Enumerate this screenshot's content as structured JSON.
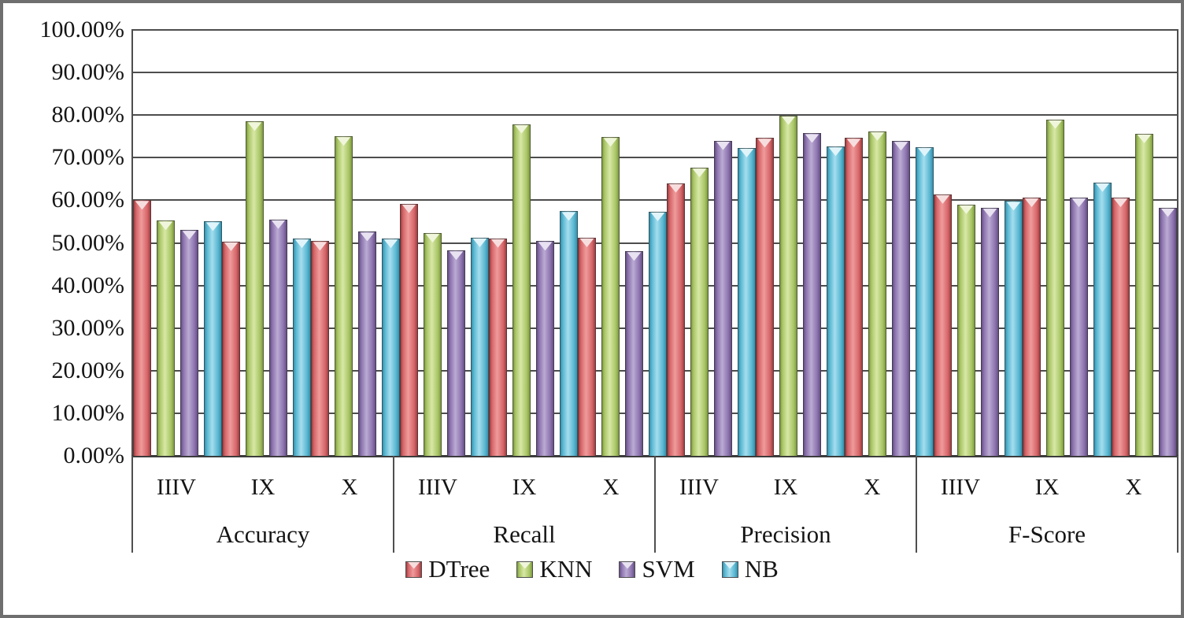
{
  "chart_data": {
    "type": "bar",
    "title": "",
    "xlabel": "",
    "ylabel": "",
    "ylim": [
      0,
      100
    ],
    "grid": true,
    "legend_position": "bottom",
    "y_ticks": [
      "100.00%",
      "90.00%",
      "80.00%",
      "70.00%",
      "60.00%",
      "50.00%",
      "40.00%",
      "30.00%",
      "20.00%",
      "10.00%",
      "0.00%"
    ],
    "groups": [
      "Accuracy",
      "Recall",
      "Precision",
      "F-Score"
    ],
    "subgroups": [
      "IIIV",
      "IX",
      "X"
    ],
    "value_order_note": "values[group_index][subgroup_index], percent",
    "series": [
      {
        "name": "DTree",
        "color": "#C0504D",
        "dark": "#9E3E41",
        "base": "#D56568",
        "light": "#F09B9C",
        "chevron": "#F7DEDE",
        "values": [
          [
            60.0,
            50.3,
            50.4
          ],
          [
            59.2,
            51.1,
            51.2
          ],
          [
            64.0,
            74.6,
            74.6
          ],
          [
            61.4,
            60.6,
            60.6
          ]
        ]
      },
      {
        "name": "KNN",
        "color": "#9BBB59",
        "dark": "#7E9A3F",
        "base": "#A8C566",
        "light": "#D8E8A6",
        "chevron": "#F0F6DC",
        "values": [
          [
            55.2,
            78.5,
            75.0
          ],
          [
            52.3,
            77.9,
            74.8
          ],
          [
            67.6,
            79.9,
            76.2
          ],
          [
            59.0,
            79.0,
            75.6
          ]
        ]
      },
      {
        "name": "SVM",
        "color": "#8064A2",
        "dark": "#655085",
        "base": "#8C72AD",
        "light": "#BBABD4",
        "chevron": "#E8E2F1",
        "values": [
          [
            53.0,
            55.5,
            52.6
          ],
          [
            48.2,
            50.4,
            48.0
          ],
          [
            74.0,
            75.7,
            73.9
          ],
          [
            58.2,
            60.6,
            58.3
          ]
        ]
      },
      {
        "name": "NB",
        "color": "#4BACC6",
        "dark": "#3690AC",
        "base": "#58B6D0",
        "light": "#A5DEEF",
        "chevron": "#E0F4FA",
        "values": [
          [
            55.0,
            51.0,
            51.0
          ],
          [
            51.2,
            57.4,
            57.3
          ],
          [
            72.3,
            72.6,
            72.5
          ],
          [
            59.8,
            64.2,
            64.3
          ]
        ]
      }
    ],
    "colors": {
      "gridline": "#4d4d4d",
      "axis_text": "#151515",
      "outer_border": "#6f6f6f",
      "plot_background": "#ffffff"
    }
  }
}
